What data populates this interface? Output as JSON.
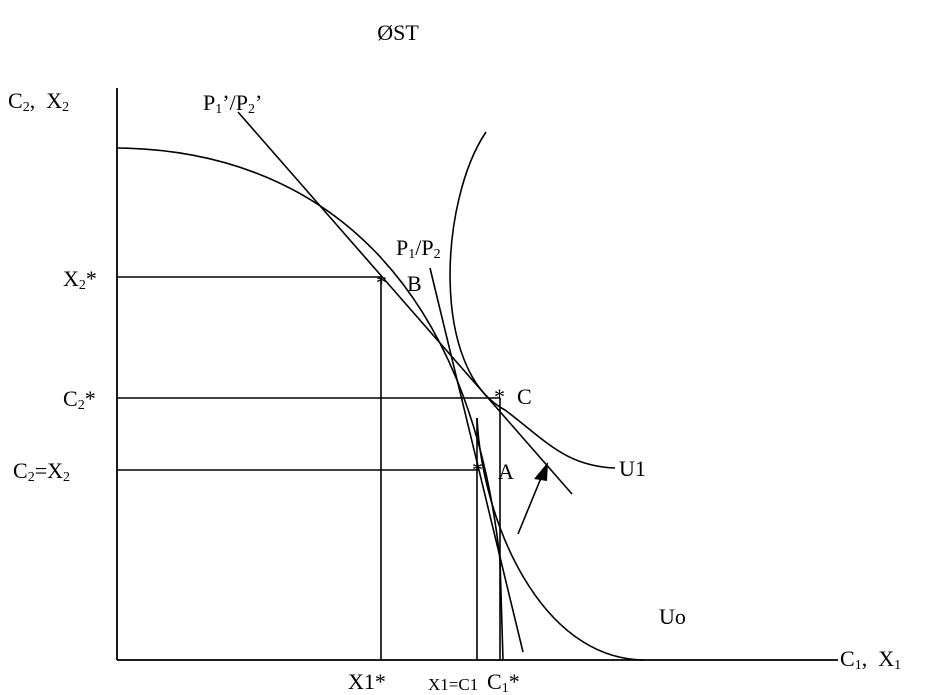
{
  "title": "ØST",
  "axes": {
    "y_label": {
      "main1": "C",
      "sub1": "2",
      "sep": ",  ",
      "main2": "X",
      "sub2": "2"
    },
    "x_label": {
      "main1": "C",
      "sub1": "1",
      "sep": ",  ",
      "main2": "X",
      "sub2": "1"
    }
  },
  "price_lines": {
    "new": {
      "p": "P",
      "s1": "1",
      "mid": "’/P",
      "s2": "2",
      "end": "’"
    },
    "old": {
      "p": "P",
      "s1": "1",
      "mid": "/P",
      "s2": "2"
    }
  },
  "points": {
    "A": "A",
    "B": "B",
    "C": "C",
    "star": "*"
  },
  "curves": {
    "u1": "U1",
    "u0": "Uo"
  },
  "y_ticks": {
    "x2_star": {
      "main": "X",
      "sub": "2",
      "end": "*"
    },
    "c2_star": {
      "main": "C",
      "sub": "2",
      "end": "*"
    },
    "c2_eq_x2": {
      "main": "C",
      "sub": "2",
      "mid": "=X",
      "sub2": "2"
    }
  },
  "x_ticks": {
    "x1_star": "X1*",
    "x1_eq_c1": "X1=C1",
    "c1_star": {
      "main": "C",
      "sub": "1",
      "end": "*"
    }
  }
}
